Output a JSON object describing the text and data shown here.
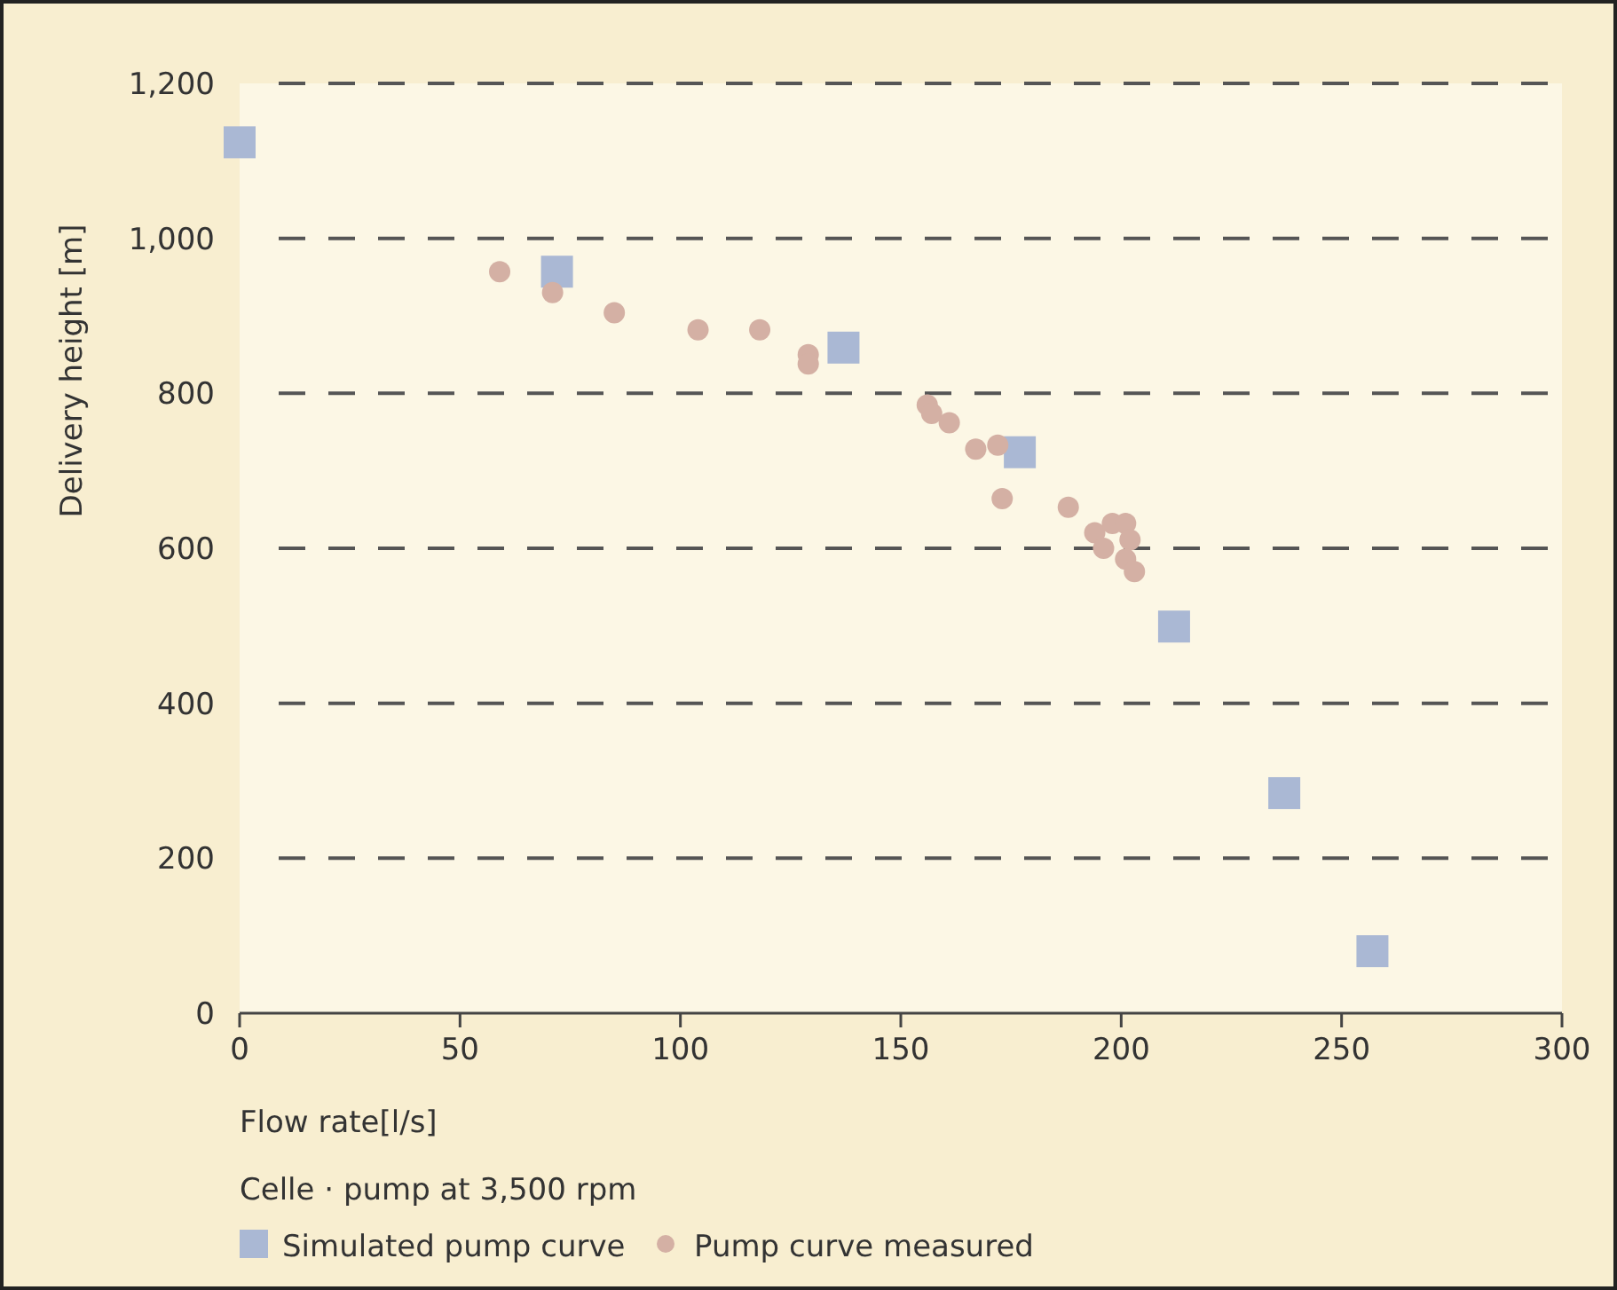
{
  "chart_data": {
    "type": "scatter",
    "xlabel": "Flow rate[l/s]",
    "ylabel": "Delivery height [m]",
    "annotations": [
      "Celle · pump at 3,500 rpm"
    ],
    "xlim": [
      0,
      300
    ],
    "xticks": [
      0,
      50,
      100,
      150,
      200,
      250,
      300
    ],
    "ylim": [
      0,
      1200
    ],
    "yticks": [
      0,
      200,
      400,
      600,
      800,
      {
        "value": 1000,
        "label": "1,000"
      },
      {
        "value": 1200,
        "label": "1,200"
      }
    ],
    "grid": "y",
    "legend": "bottom",
    "series": [
      {
        "name": "Simulated pump curve",
        "color": "#aab8d4",
        "marker": "square",
        "x": [
          0,
          72,
          137,
          177,
          212,
          237,
          257
        ],
        "values": [
          1124,
          957,
          859,
          724,
          499,
          284,
          80
        ]
      },
      {
        "name": "Pump curve measured",
        "color": "#d4b0a4",
        "marker": "circle",
        "x": [
          59,
          71,
          85,
          104,
          118,
          129,
          129,
          156,
          157,
          161,
          167,
          172,
          173,
          188,
          194,
          196,
          198,
          201,
          202,
          201,
          203
        ],
        "values": [
          957,
          930,
          904,
          882,
          882,
          850,
          838,
          785,
          774,
          762,
          728,
          733,
          664,
          653,
          620,
          600,
          632,
          632,
          611,
          586,
          570
        ]
      }
    ]
  }
}
